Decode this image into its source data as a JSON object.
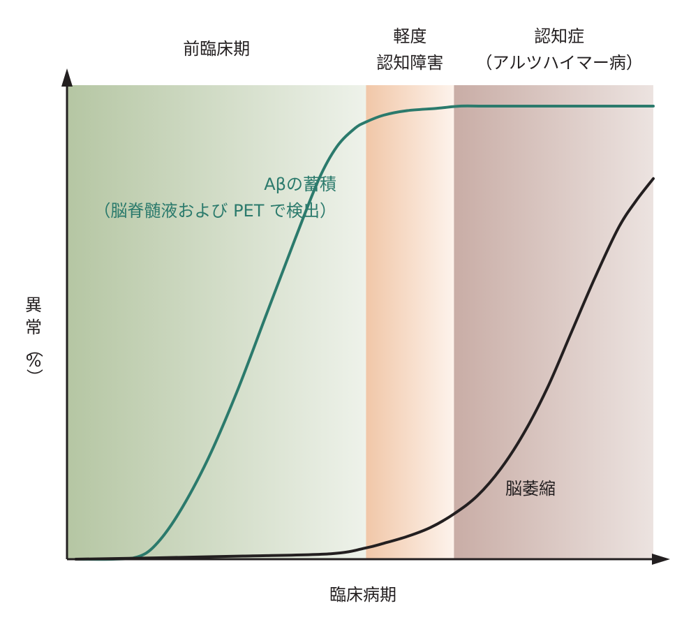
{
  "chart_data": {
    "type": "line",
    "title": "",
    "xlabel": "臨床病期",
    "ylabel": "異常（%）",
    "ylabel_parts": [
      "異",
      "常",
      "（",
      "%",
      "）"
    ],
    "x_ticks": [],
    "y_ticks": [],
    "grid": false,
    "xlim": [
      0,
      100
    ],
    "ylim": [
      0,
      100
    ],
    "stages": [
      {
        "lines": [
          "前臨床期"
        ],
        "x_start": 0,
        "x_end": 51,
        "color_start": "#b5c6a3",
        "color_end": "#eef2ea"
      },
      {
        "lines": [
          "軽度",
          "認知障害"
        ],
        "x_start": 51,
        "x_end": 66,
        "color_start": "#f1c7a8",
        "color_end": "#fdf3ec"
      },
      {
        "lines": [
          "認知症",
          "（アルツハイマー病）"
        ],
        "x_start": 66,
        "x_end": 100,
        "color_start": "#c9ada6",
        "color_end": "#ece3e0"
      }
    ],
    "series": [
      {
        "name": "Aβの蓄積",
        "label_lines": [
          "Aβの蓄積",
          "（脳脊髄液および PET で検出）"
        ],
        "color": "#2b7a6c",
        "x": [
          1.5,
          8,
          12,
          15,
          19,
          24,
          29,
          34,
          39,
          43,
          46,
          49,
          51,
          54,
          58,
          63,
          67,
          71,
          78,
          86,
          94,
          100
        ],
        "y": [
          0,
          0,
          0.5,
          3,
          10,
          22,
          37,
          54,
          71,
          84,
          91,
          95,
          96.5,
          98,
          99,
          99.5,
          100,
          100,
          100,
          100,
          100,
          100
        ]
      },
      {
        "name": "脳萎縮",
        "label_lines": [
          "脳萎縮"
        ],
        "color": "#231f20",
        "x": [
          1.5,
          15,
          30,
          45,
          51,
          54,
          58,
          62,
          66,
          70,
          74,
          78,
          82,
          86,
          90,
          94,
          97,
          100
        ],
        "y": [
          0,
          0.3,
          0.7,
          1.2,
          2.5,
          3.5,
          5,
          7,
          10,
          14,
          20,
          28,
          38,
          50,
          62,
          73,
          79,
          84
        ]
      }
    ]
  }
}
